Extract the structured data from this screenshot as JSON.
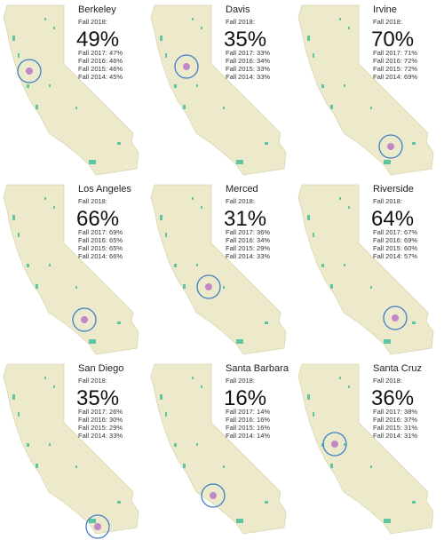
{
  "panels": [
    {
      "name": "Berkeley",
      "current_label": "Fall 2018:",
      "current": "49%",
      "history": [
        "Fall 2017: 47%",
        "Fall 2016: 46%",
        "Fall 2015: 46%",
        "Fall 2014: 45%"
      ]
    },
    {
      "name": "Davis",
      "current_label": "Fall 2018:",
      "current": "35%",
      "history": [
        "Fall 2017: 33%",
        "Fall 2016: 34%",
        "Fall 2015: 33%",
        "Fall 2014: 33%"
      ]
    },
    {
      "name": "Irvine",
      "current_label": "Fall 2018:",
      "current": "70%",
      "history": [
        "Fall 2017: 71%",
        "Fall 2016: 72%",
        "Fall 2015: 72%",
        "Fall 2014: 69%"
      ]
    },
    {
      "name": "Los Angeles",
      "current_label": "Fall 2018:",
      "current": "66%",
      "history": [
        "Fall 2017: 69%",
        "Fall 2016: 65%",
        "Fall 2015: 65%",
        "Fall 2014: 66%"
      ]
    },
    {
      "name": "Merced",
      "current_label": "Fall 2018:",
      "current": "31%",
      "history": [
        "Fall 2017: 36%",
        "Fall 2016: 34%",
        "Fall 2015: 29%",
        "Fall 2014: 33%"
      ]
    },
    {
      "name": "Riverside",
      "current_label": "Fall 2018:",
      "current": "64%",
      "history": [
        "Fall 2017: 67%",
        "Fall 2016: 69%",
        "Fall 2015: 60%",
        "Fall 2014: 57%"
      ]
    },
    {
      "name": "San Diego",
      "current_label": "Fall 2018:",
      "current": "35%",
      "history": [
        "Fall 2017: 26%",
        "Fall 2016: 30%",
        "Fall 2015: 29%",
        "Fall 2014: 33%"
      ]
    },
    {
      "name": "Santa Barbara",
      "current_label": "Fall 2018:",
      "current": "16%",
      "history": [
        "Fall 2017: 14%",
        "Fall 2016: 16%",
        "Fall 2015: 16%",
        "Fall 2014: 14%"
      ]
    },
    {
      "name": "Santa Cruz",
      "current_label": "Fall 2018:",
      "current": "36%",
      "history": [
        "Fall 2017: 38%",
        "Fall 2016: 37%",
        "Fall 2015: 31%",
        "Fall 2014: 31%"
      ]
    }
  ]
}
